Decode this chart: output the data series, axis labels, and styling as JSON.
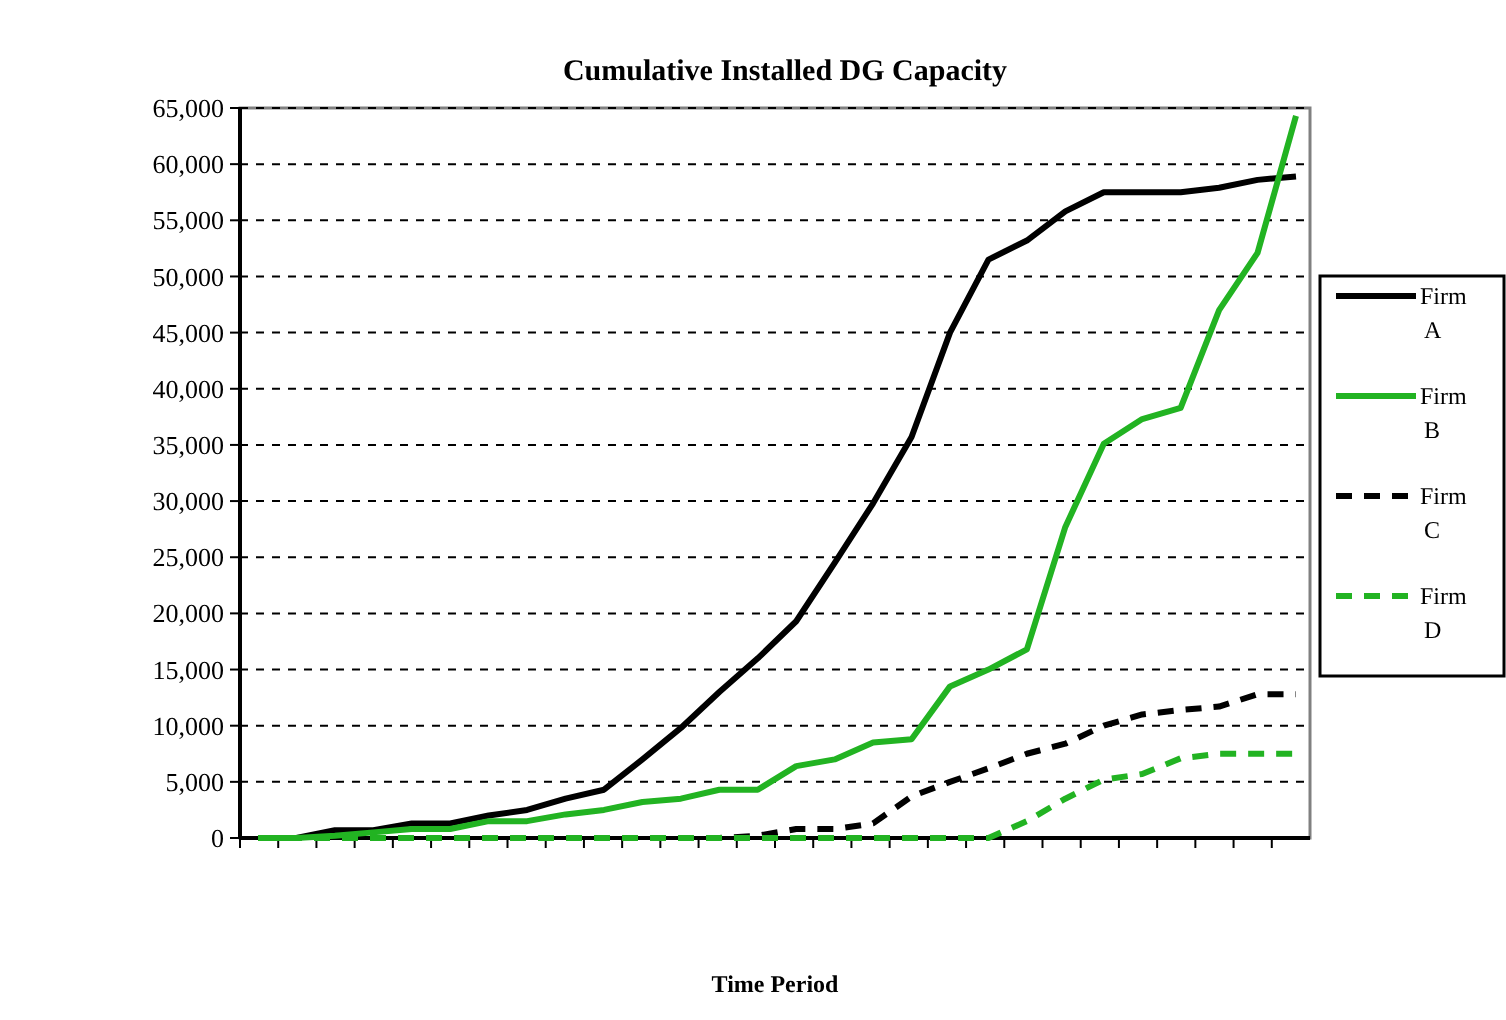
{
  "chart_data": {
    "type": "line",
    "title": "Cumulative Installed DG Capacity",
    "xlabel": "Time Period",
    "categories": [
      null,
      null,
      null,
      null,
      null,
      null,
      null,
      null,
      null,
      null,
      null,
      null,
      null,
      null,
      null,
      null,
      null,
      null,
      null,
      null,
      null,
      null,
      null,
      null,
      null,
      null,
      null,
      null
    ],
    "series": [
      {
        "name": "Firm A",
        "color": "#000000",
        "line_style": "solid",
        "values": [
          0,
          0,
          700,
          700,
          1300,
          1300,
          2000,
          2500,
          3500,
          4300,
          7000,
          9800,
          13000,
          16000,
          19300,
          24500,
          29800,
          35700,
          45000,
          51500,
          53200,
          55800,
          57500,
          57500,
          57500,
          57900,
          58600,
          58900
        ]
      },
      {
        "name": "Firm B",
        "color": "#22b322",
        "line_style": "solid",
        "values": [
          0,
          0,
          200,
          500,
          800,
          800,
          1500,
          1500,
          2100,
          2500,
          3200,
          3500,
          4300,
          4300,
          6400,
          7000,
          8500,
          8800,
          13500,
          15000,
          16800,
          27700,
          35100,
          37300,
          38300,
          47000,
          52100,
          64300
        ]
      },
      {
        "name": "Firm C",
        "color": "#000000",
        "line_style": "dashed",
        "values": [
          0,
          0,
          0,
          0,
          0,
          0,
          0,
          0,
          0,
          0,
          0,
          0,
          0,
          200,
          800,
          800,
          1300,
          3700,
          5000,
          6200,
          7500,
          8400,
          10000,
          11000,
          11400,
          11700,
          12800,
          12800
        ]
      },
      {
        "name": "Firm D",
        "color": "#22b322",
        "line_style": "dashed",
        "values": [
          0,
          0,
          0,
          0,
          0,
          0,
          0,
          0,
          0,
          0,
          0,
          0,
          0,
          0,
          0,
          0,
          0,
          0,
          0,
          0,
          1500,
          3500,
          5200,
          5700,
          7100,
          7500,
          7500,
          7500
        ]
      }
    ],
    "ylim": [
      0,
      65000
    ],
    "yticks": [
      {
        "value": 0,
        "label": "0"
      },
      {
        "value": 5000,
        "label": "5,000"
      },
      {
        "value": 10000,
        "label": "10,000"
      },
      {
        "value": 15000,
        "label": "15,000"
      },
      {
        "value": 20000,
        "label": "20,000"
      },
      {
        "value": 25000,
        "label": "25,000"
      },
      {
        "value": 30000,
        "label": "30,000"
      },
      {
        "value": 35000,
        "label": "35,000"
      },
      {
        "value": 40000,
        "label": "40,000"
      },
      {
        "value": 45000,
        "label": "45,000"
      },
      {
        "value": 50000,
        "label": "50,000"
      },
      {
        "value": 55000,
        "label": "55,000"
      },
      {
        "value": 60000,
        "label": "60,000"
      },
      {
        "value": 65000,
        "label": "65,000"
      }
    ],
    "grid": "y",
    "legend": "right"
  }
}
